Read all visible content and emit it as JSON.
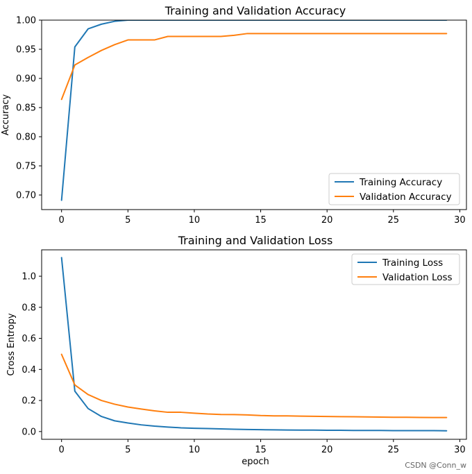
{
  "chart_data": [
    {
      "type": "line",
      "title": "Training and Validation Accuracy",
      "xlabel": "",
      "ylabel": "Accuracy",
      "xlim": [
        -1.5,
        30.5
      ],
      "ylim": [
        0.675,
        1.0
      ],
      "xticks": [
        0,
        5,
        10,
        15,
        20,
        25,
        30
      ],
      "xtick_labels": [
        "0",
        "5",
        "10",
        "15",
        "20",
        "25",
        "30"
      ],
      "yticks": [
        0.7,
        0.75,
        0.8,
        0.85,
        0.9,
        0.95,
        1.0
      ],
      "ytick_labels": [
        "0.70",
        "0.75",
        "0.80",
        "0.85",
        "0.90",
        "0.95",
        "1.00"
      ],
      "legend_position": "lower-right",
      "x": [
        0,
        1,
        2,
        3,
        4,
        5,
        6,
        7,
        8,
        9,
        10,
        11,
        12,
        13,
        14,
        15,
        16,
        17,
        18,
        19,
        20,
        21,
        22,
        23,
        24,
        25,
        26,
        27,
        28,
        29
      ],
      "series": [
        {
          "name": "Training Accuracy",
          "color": "#1f77b4",
          "values": [
            0.691,
            0.954,
            0.985,
            0.993,
            0.998,
            1.0,
            1.0,
            1.0,
            1.0,
            1.0,
            1.0,
            1.0,
            1.0,
            1.0,
            1.0,
            1.0,
            1.0,
            1.0,
            1.0,
            1.0,
            1.0,
            1.0,
            1.0,
            1.0,
            1.0,
            1.0,
            1.0,
            1.0,
            1.0,
            1.0
          ]
        },
        {
          "name": "Validation Accuracy",
          "color": "#ff7f0e",
          "values": [
            0.864,
            0.923,
            0.936,
            0.948,
            0.958,
            0.966,
            0.966,
            0.966,
            0.972,
            0.972,
            0.972,
            0.972,
            0.972,
            0.974,
            0.977,
            0.977,
            0.977,
            0.977,
            0.977,
            0.977,
            0.977,
            0.977,
            0.977,
            0.977,
            0.977,
            0.977,
            0.977,
            0.977,
            0.977,
            0.977
          ]
        }
      ]
    },
    {
      "type": "line",
      "title": "Training and Validation Loss",
      "xlabel": "epoch",
      "ylabel": "Cross Entropy",
      "xlim": [
        -1.5,
        30.5
      ],
      "ylim": [
        -0.05,
        1.17
      ],
      "xticks": [
        0,
        5,
        10,
        15,
        20,
        25,
        30
      ],
      "xtick_labels": [
        "0",
        "5",
        "10",
        "15",
        "20",
        "25",
        "30"
      ],
      "yticks": [
        0.0,
        0.2,
        0.4,
        0.6,
        0.8,
        1.0
      ],
      "ytick_labels": [
        "0.0",
        "0.2",
        "0.4",
        "0.6",
        "0.8",
        "1.0"
      ],
      "legend_position": "upper-right",
      "x": [
        0,
        1,
        2,
        3,
        4,
        5,
        6,
        7,
        8,
        9,
        10,
        11,
        12,
        13,
        14,
        15,
        16,
        17,
        18,
        19,
        20,
        21,
        22,
        23,
        24,
        25,
        26,
        27,
        28,
        29
      ],
      "series": [
        {
          "name": "Training Loss",
          "color": "#1f77b4",
          "values": [
            1.12,
            0.26,
            0.148,
            0.097,
            0.069,
            0.055,
            0.043,
            0.035,
            0.029,
            0.024,
            0.021,
            0.019,
            0.017,
            0.015,
            0.013,
            0.012,
            0.011,
            0.01,
            0.009,
            0.009,
            0.008,
            0.008,
            0.007,
            0.007,
            0.007,
            0.006,
            0.006,
            0.006,
            0.006,
            0.005
          ]
        },
        {
          "name": "Validation Loss",
          "color": "#ff7f0e",
          "values": [
            0.497,
            0.3,
            0.238,
            0.2,
            0.176,
            0.158,
            0.145,
            0.133,
            0.124,
            0.124,
            0.118,
            0.113,
            0.11,
            0.109,
            0.107,
            0.103,
            0.101,
            0.101,
            0.099,
            0.098,
            0.097,
            0.096,
            0.095,
            0.094,
            0.093,
            0.092,
            0.092,
            0.091,
            0.09,
            0.09
          ]
        }
      ]
    }
  ],
  "watermark": "CSDN @Conn_w"
}
